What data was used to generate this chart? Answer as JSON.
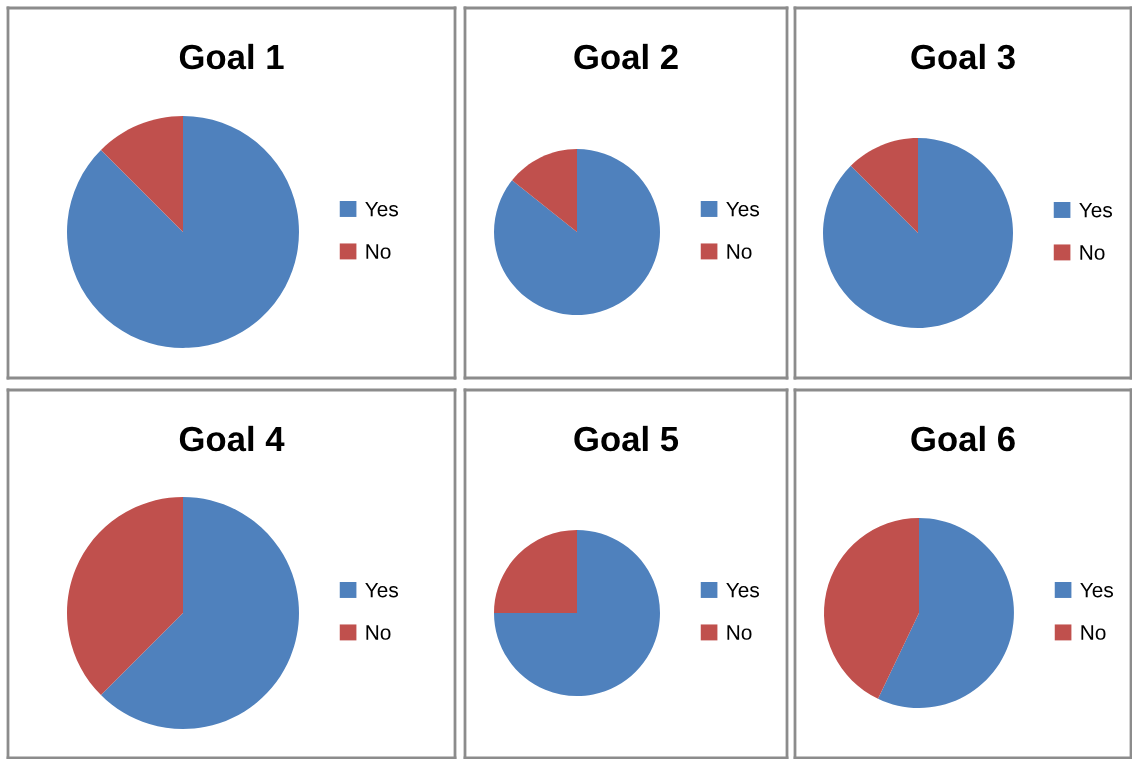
{
  "chart_data": [
    {
      "type": "pie",
      "title": "Goal 1",
      "categories": [
        "Yes",
        "No"
      ],
      "values": [
        87.5,
        12.5
      ],
      "colors": [
        "#4f81bd",
        "#c0504d"
      ],
      "legend": "right"
    },
    {
      "type": "pie",
      "title": "Goal 2",
      "categories": [
        "Yes",
        "No"
      ],
      "values": [
        85.7,
        14.3
      ],
      "colors": [
        "#4f81bd",
        "#c0504d"
      ],
      "legend": "right"
    },
    {
      "type": "pie",
      "title": "Goal 3",
      "categories": [
        "Yes",
        "No"
      ],
      "values": [
        87.5,
        12.5
      ],
      "colors": [
        "#4f81bd",
        "#c0504d"
      ],
      "legend": "right"
    },
    {
      "type": "pie",
      "title": "Goal 4",
      "categories": [
        "Yes",
        "No"
      ],
      "values": [
        62.5,
        37.5
      ],
      "colors": [
        "#4f81bd",
        "#c0504d"
      ],
      "legend": "right"
    },
    {
      "type": "pie",
      "title": "Goal 5",
      "categories": [
        "Yes",
        "No"
      ],
      "values": [
        75,
        25
      ],
      "colors": [
        "#4f81bd",
        "#c0504d"
      ],
      "legend": "right"
    },
    {
      "type": "pie",
      "title": "Goal 6",
      "categories": [
        "Yes",
        "No"
      ],
      "values": [
        57.1,
        42.9
      ],
      "colors": [
        "#4f81bd",
        "#c0504d"
      ],
      "legend": "right"
    }
  ]
}
